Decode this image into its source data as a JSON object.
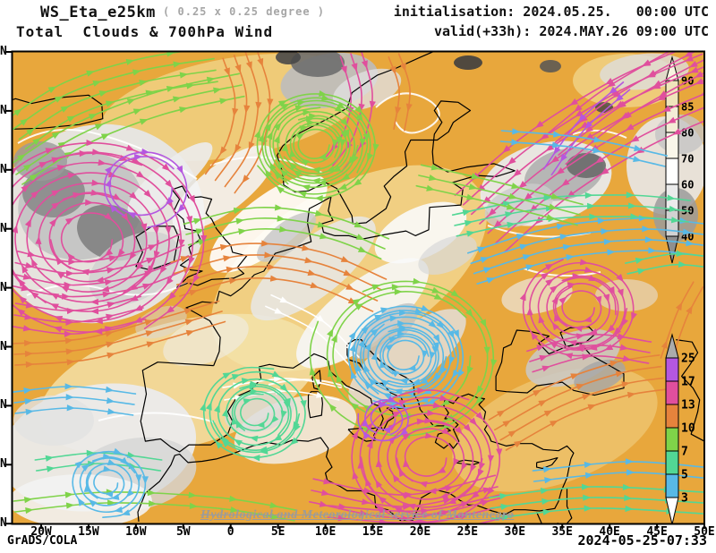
{
  "header": {
    "model": "WS_Eta_e25km",
    "resolution": " ( 0.25 x 0.25 degree )",
    "product": "Total  Clouds & 700hPa Wind",
    "initialisation": "initialisation: 2024.05.25.   00:00 UTC",
    "valid": "valid(+33h): 2024.MAY.26 09:00 UTC"
  },
  "watermark": "Hydrological and Meteorological service of Montenegro",
  "footer": {
    "engine": "GrADS/COLA",
    "generated": "2024-05-25-07:33"
  },
  "axes": {
    "lon_labels": [
      "20W",
      "15W",
      "10W",
      "5W",
      "0",
      "5E",
      "10E",
      "15E",
      "20E",
      "25E",
      "30E",
      "35E",
      "40E",
      "45E",
      "50E"
    ],
    "lat_label": "N",
    "lat_tick_count": 9
  },
  "legend_clouds": {
    "labels": [
      "90",
      "85",
      "80",
      "70",
      "60",
      "50",
      "40"
    ],
    "segment_colors": [
      "#efe5bb",
      "#f3edd6",
      "#f9f6ea",
      "#ffffff",
      "#ebebeb",
      "#d2d2d2"
    ],
    "arrow_top_color": "#f7f3e0",
    "arrow_bottom_color": "#8f8f8f"
  },
  "legend_wind": {
    "labels": [
      "25",
      "17",
      "13",
      "10",
      "7",
      "5",
      "3"
    ],
    "segment_colors": [
      "#b457e0",
      "#e04f9d",
      "#e6833c",
      "#7fd349",
      "#52d795",
      "#58b9e6"
    ],
    "arrow_top_color": "#ababab",
    "arrow_bottom_color": "#ffffff"
  },
  "palette": {
    "c3": "#58b9e6",
    "c5": "#52d795",
    "c7": "#7fd349",
    "c10": "#e6833c",
    "c13": "#e04f9d",
    "c17": "#b457e0",
    "calm": "#ffffff",
    "clear_sky": "#e8a73c",
    "frame": "#000000"
  },
  "chart_data": {
    "type": "map",
    "product": "Total Clouds & 700hPa Wind streamlines",
    "lon_ticks": [
      "20W",
      "15W",
      "10W",
      "5W",
      "0",
      "5E",
      "10E",
      "15E",
      "20E",
      "25E",
      "30E",
      "35E",
      "40E",
      "45E",
      "50E"
    ],
    "cloud_scale_percent": [
      40,
      50,
      60,
      70,
      80,
      85,
      90
    ],
    "wind_scale_ms": [
      3,
      5,
      7,
      10,
      13,
      17,
      25
    ]
  }
}
